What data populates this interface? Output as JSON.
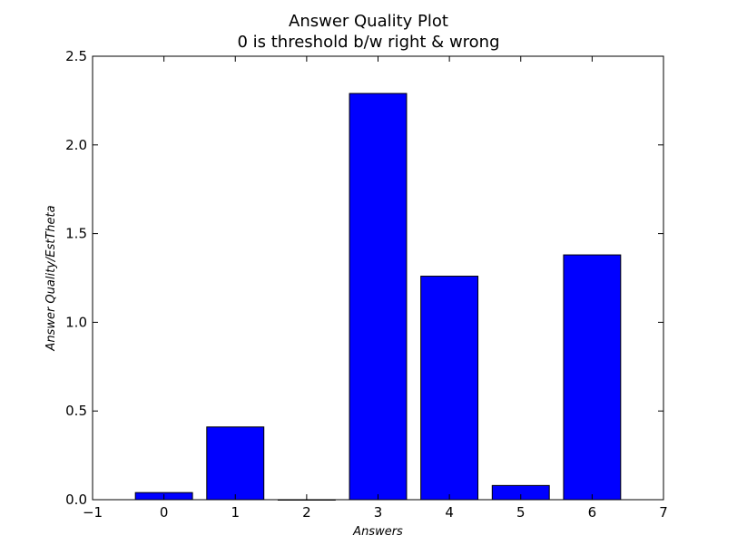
{
  "chart_data": {
    "type": "bar",
    "title": "Answer Quality Plot",
    "subtitle": "0 is threshold b/w right & wrong",
    "xlabel": "Answers",
    "ylabel": "Answer Quality/EstTheta",
    "categories": [
      "0",
      "1",
      "2",
      "3",
      "4",
      "5",
      "6"
    ],
    "values": [
      0.04,
      0.41,
      0.0,
      2.29,
      1.26,
      0.08,
      1.38
    ],
    "xlim": [
      -1,
      7
    ],
    "ylim": [
      0,
      2.5
    ],
    "xticks": [
      "−1",
      "0",
      "1",
      "2",
      "3",
      "4",
      "5",
      "6",
      "7"
    ],
    "yticks": [
      "0.0",
      "0.5",
      "1.0",
      "1.5",
      "2.0",
      "2.5"
    ],
    "bar_color": "#0000ff",
    "edge_color": "#000000",
    "grid": false
  }
}
